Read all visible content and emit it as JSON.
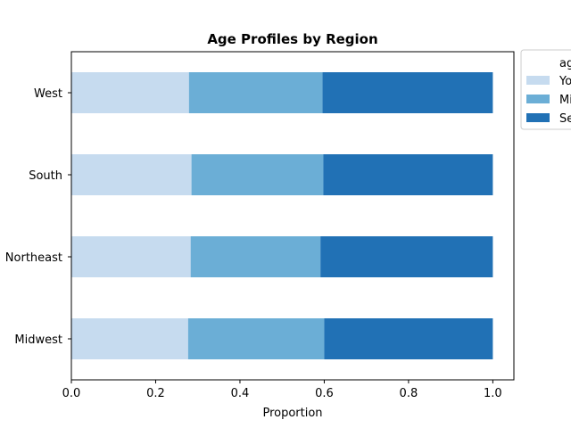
{
  "chart_data": {
    "type": "bar",
    "orientation": "horizontal",
    "stacked": true,
    "title": "Age Profiles by Region",
    "xlabel": "Proportion",
    "ylabel": "",
    "xlim": [
      0,
      1.05
    ],
    "xticks": [
      0.0,
      0.2,
      0.4,
      0.6,
      0.8,
      1.0
    ],
    "xtick_labels": [
      "0.0",
      "0.2",
      "0.4",
      "0.6",
      "0.8",
      "1.0"
    ],
    "categories": [
      "Midwest",
      "Northeast",
      "South",
      "West"
    ],
    "series": [
      {
        "name": "Yo",
        "color": "#c6dbef",
        "values": [
          0.277,
          0.283,
          0.285,
          0.279
        ]
      },
      {
        "name": "Mi",
        "color": "#6baed6",
        "values": [
          0.323,
          0.308,
          0.313,
          0.317
        ]
      },
      {
        "name": "Se",
        "color": "#2171b5",
        "values": [
          0.4,
          0.409,
          0.402,
          0.404
        ]
      }
    ],
    "legend": {
      "title": "ag",
      "placement": "outside-top-right"
    },
    "grid": false
  }
}
